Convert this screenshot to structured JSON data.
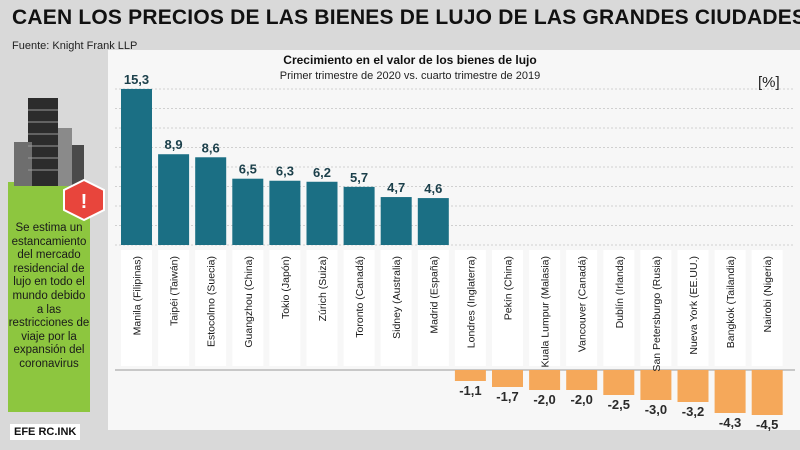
{
  "header": {
    "title": "CAEN LOS PRECIOS DE LAS BIENES DE LUJO DE LAS GRANDES CIUDADES",
    "source": "Fuente: Knight Frank LLP"
  },
  "sidebar": {
    "text": "Se estima un estancamiento del mercado residencial de lujo en todo el mundo debido a las restricciones de viaje por la expansión del coronavirus",
    "logo_text": "EFE RC.INK"
  },
  "chart_data": {
    "type": "bar",
    "title": "Crecimiento en el valor de los bienes de lujo",
    "subtitle": "Primer trimestre de 2020 vs. cuarto trimestre de 2019",
    "unit_label": "[%]",
    "categories": [
      "Manila (Filipinas)",
      "Taipéi (Taiwán)",
      "Estocolmo (Suecia)",
      "Guangzhou (China)",
      "Tokio (Japón)",
      "Zúrich (Suiza)",
      "Toronto (Canadá)",
      "Sidney (Australia)",
      "Madrid (España)",
      "Londres (Inglaterra)",
      "Pekín (China)",
      "Kuala Lumpur (Malasia)",
      "Vancouver (Canadá)",
      "Dublín (Irlanda)",
      "San Petersburgo (Rusia)",
      "Nueva York (EE.UU.)",
      "Bangkok (Tailandia)",
      "Nairobi (Nigeria)"
    ],
    "values": [
      15.3,
      8.9,
      8.6,
      6.5,
      6.3,
      6.2,
      5.7,
      4.7,
      4.6,
      -1.1,
      -1.7,
      -2.0,
      -2.0,
      -2.5,
      -3.0,
      -3.2,
      -4.3,
      -4.5
    ],
    "value_labels": [
      "15,3",
      "8,9",
      "8,6",
      "6,5",
      "6,3",
      "6,2",
      "5,7",
      "4,7",
      "4,6",
      "-1,1",
      "-1,7",
      "-2,0",
      "-2,0",
      "-2,5",
      "-3,0",
      "-3,2",
      "-4,3",
      "-4,5"
    ],
    "colors": {
      "positive": "#1b6f84",
      "negative": "#f5a85a",
      "alert": "#e8453c"
    }
  }
}
